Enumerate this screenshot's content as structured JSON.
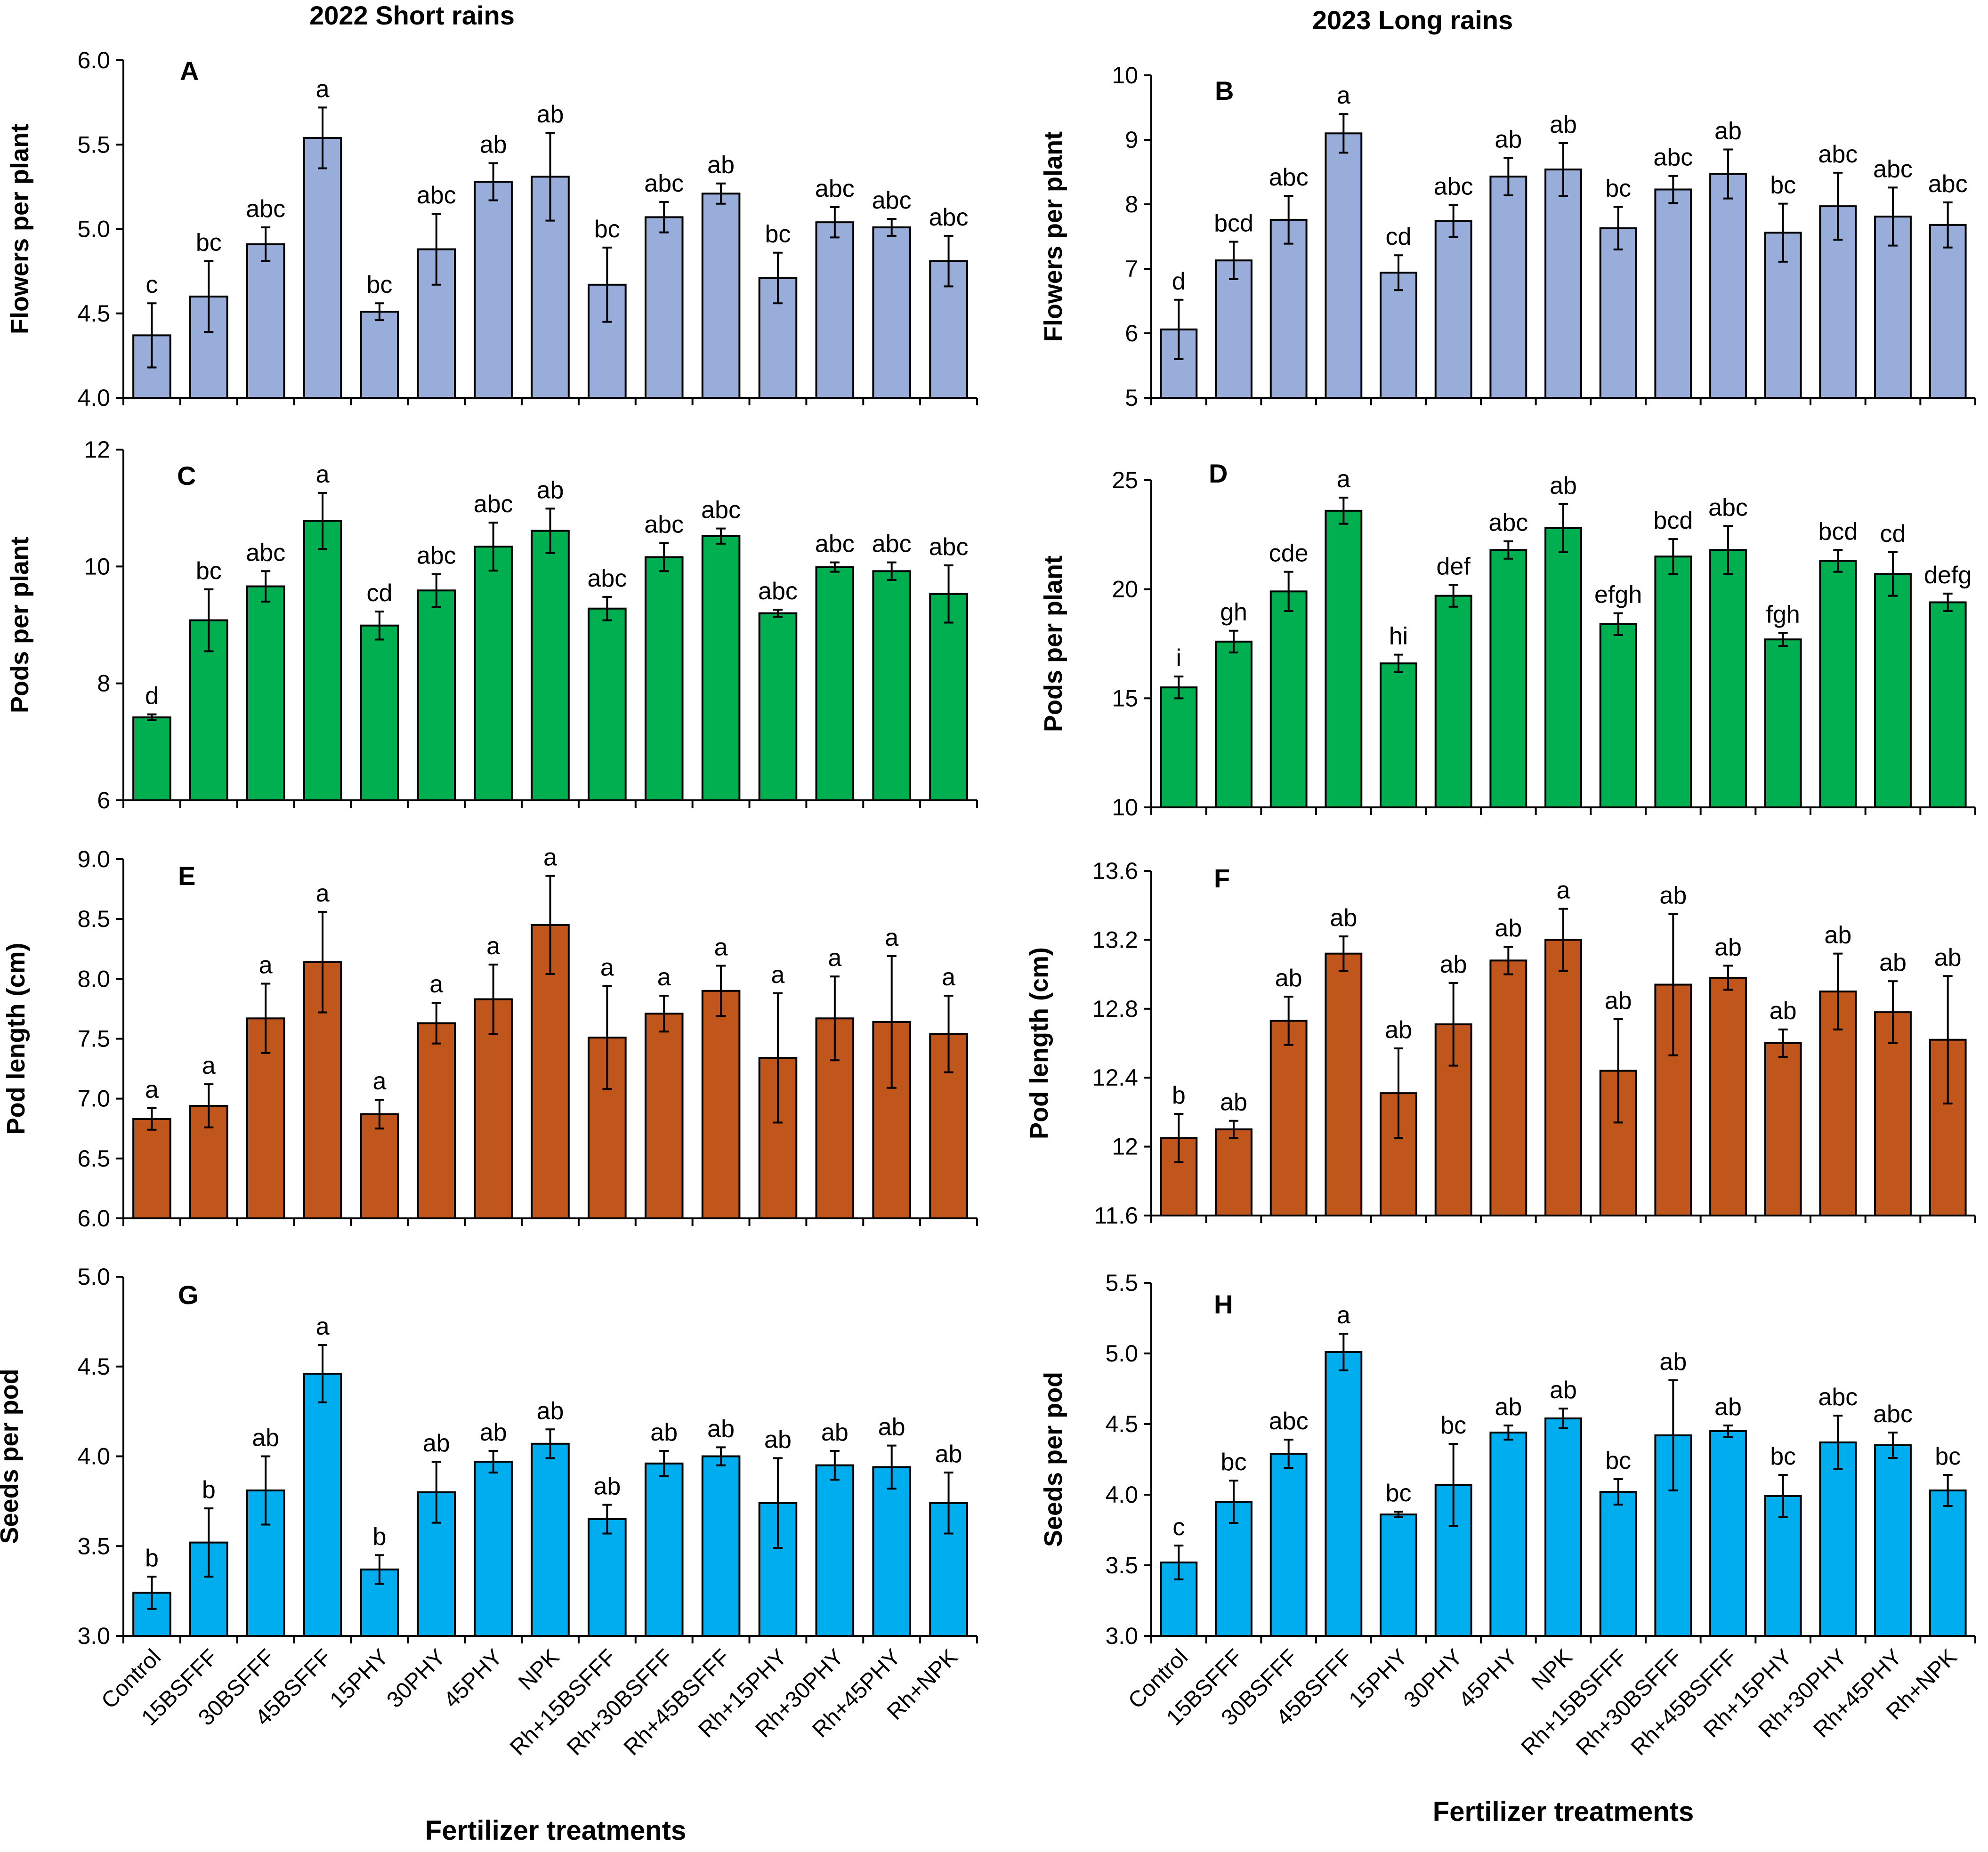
{
  "figure": {
    "season_titles": [
      "2022 Short rains",
      "2023 Long rains"
    ],
    "x_axis_title": "Fertilizer treatments"
  },
  "colors": {
    "flowers": "#98add9",
    "pods": "#00b050",
    "pod_length": "#c0561b",
    "seeds": "#00aeef",
    "axis": "#000000"
  },
  "chart_data": [
    {
      "type": "bar",
      "panel": "A",
      "season": "2022 Short rains",
      "color_key": "flowers",
      "ylabel": "Flowers per plant",
      "ylim": [
        4.0,
        6.0
      ],
      "yticks": [
        4.0,
        4.5,
        5.0,
        5.5,
        6.0
      ],
      "ytick_labels": [
        "4.0",
        "4.5",
        "5.0",
        "5.5",
        "6.0"
      ],
      "categories": [
        "Control",
        "15BSFFF",
        "30BSFFF",
        "45BSFFF",
        "15PHY",
        "30PHY",
        "45PHY",
        "NPK",
        "Rh+15BSFFF",
        "Rh+30BSFFF",
        "Rh+45BSFFF",
        "Rh+15PHY",
        "Rh+30PHY",
        "Rh+45PHY",
        "Rh+NPK"
      ],
      "values": [
        4.37,
        4.6,
        4.91,
        5.54,
        4.51,
        4.88,
        5.28,
        5.31,
        4.67,
        5.07,
        5.21,
        4.71,
        5.04,
        5.01,
        4.81
      ],
      "errors": [
        0.19,
        0.21,
        0.1,
        0.18,
        0.05,
        0.21,
        0.11,
        0.26,
        0.22,
        0.09,
        0.06,
        0.15,
        0.09,
        0.05,
        0.15
      ],
      "letters": [
        "c",
        "bc",
        "abc",
        "a",
        "bc",
        "abc",
        "ab",
        "ab",
        "bc",
        "abc",
        "ab",
        "bc",
        "abc",
        "abc",
        "abc"
      ],
      "show_xlabels": false
    },
    {
      "type": "bar",
      "panel": "B",
      "season": "2023 Long rains",
      "color_key": "flowers",
      "ylabel": "Flowers per plant",
      "ylim": [
        5,
        10
      ],
      "yticks": [
        5,
        6,
        7,
        8,
        9,
        10
      ],
      "ytick_labels": [
        "5",
        "6",
        "7",
        "8",
        "9",
        "10"
      ],
      "categories": [
        "Control",
        "15BSFFF",
        "30BSFFF",
        "45BSFFF",
        "15PHY",
        "30PHY",
        "45PHY",
        "NPK",
        "Rh+15BSFFF",
        "Rh+30BSFFF",
        "Rh+45BSFFF",
        "Rh+15PHY",
        "Rh+30PHY",
        "Rh+45PHY",
        "Rh+NPK"
      ],
      "values": [
        6.06,
        7.13,
        7.76,
        9.1,
        6.94,
        7.74,
        8.43,
        8.54,
        7.63,
        8.23,
        8.47,
        7.56,
        7.97,
        7.81,
        7.68
      ],
      "errors": [
        0.46,
        0.29,
        0.37,
        0.3,
        0.27,
        0.25,
        0.29,
        0.41,
        0.33,
        0.21,
        0.38,
        0.45,
        0.52,
        0.45,
        0.35
      ],
      "letters": [
        "d",
        "bcd",
        "abc",
        "a",
        "cd",
        "abc",
        "ab",
        "ab",
        "bc",
        "abc",
        "ab",
        "bc",
        "abc",
        "abc",
        "abc"
      ],
      "show_xlabels": false
    },
    {
      "type": "bar",
      "panel": "C",
      "season": "2022 Short rains",
      "color_key": "pods",
      "ylabel": "Pods per plant",
      "ylim": [
        6,
        12
      ],
      "yticks": [
        6,
        8,
        10,
        12
      ],
      "ytick_labels": [
        "6",
        "8",
        "10",
        "12"
      ],
      "categories": [
        "Control",
        "15BSFFF",
        "30BSFFF",
        "45BSFFF",
        "15PHY",
        "30PHY",
        "45PHY",
        "NPK",
        "Rh+15BSFFF",
        "Rh+30BSFFF",
        "Rh+45BSFFF",
        "Rh+15PHY",
        "Rh+30PHY",
        "Rh+45PHY",
        "Rh+NPK"
      ],
      "values": [
        7.42,
        9.08,
        9.66,
        10.78,
        8.99,
        9.59,
        10.34,
        10.61,
        9.28,
        10.16,
        10.52,
        9.2,
        9.99,
        9.92,
        9.53
      ],
      "errors": [
        0.05,
        0.53,
        0.26,
        0.48,
        0.24,
        0.28,
        0.41,
        0.38,
        0.2,
        0.24,
        0.13,
        0.06,
        0.08,
        0.15,
        0.49
      ],
      "letters": [
        "d",
        "bc",
        "abc",
        "a",
        "cd",
        "abc",
        "abc",
        "ab",
        "abc",
        "abc",
        "abc",
        "abc",
        "abc",
        "abc",
        "abc"
      ],
      "show_xlabels": false
    },
    {
      "type": "bar",
      "panel": "D",
      "season": "2023 Long rains",
      "color_key": "pods",
      "ylabel": "Pods per plant",
      "ylim": [
        10,
        25
      ],
      "yticks": [
        10,
        15,
        20,
        25
      ],
      "ytick_labels": [
        "10",
        "15",
        "20",
        "25"
      ],
      "categories": [
        "Control",
        "15BSFFF",
        "30BSFFF",
        "45BSFFF",
        "15PHY",
        "30PHY",
        "45PHY",
        "NPK",
        "Rh+15BSFFF",
        "Rh+30BSFFF",
        "Rh+45BSFFF",
        "Rh+15PHY",
        "Rh+30PHY",
        "Rh+45PHY",
        "Rh+NPK"
      ],
      "values": [
        15.5,
        17.6,
        19.9,
        23.6,
        16.6,
        19.7,
        21.8,
        22.8,
        18.4,
        21.5,
        21.8,
        17.7,
        21.3,
        20.7,
        19.4
      ],
      "errors": [
        0.5,
        0.5,
        0.9,
        0.6,
        0.4,
        0.5,
        0.4,
        1.1,
        0.5,
        0.8,
        1.1,
        0.3,
        0.5,
        1.0,
        0.4
      ],
      "letters": [
        "i",
        "gh",
        "cde",
        "a",
        "hi",
        "def",
        "abc",
        "ab",
        "efgh",
        "bcd",
        "abc",
        "fgh",
        "bcd",
        "cd",
        "defg"
      ],
      "show_xlabels": false
    },
    {
      "type": "bar",
      "panel": "E",
      "season": "2022 Short rains",
      "color_key": "pod_length",
      "ylabel": "Pod length (cm)",
      "ylim": [
        6.0,
        9.0
      ],
      "yticks": [
        6.0,
        6.5,
        7.0,
        7.5,
        8.0,
        8.5,
        9.0
      ],
      "ytick_labels": [
        "6.0",
        "6.5",
        "7.0",
        "7.5",
        "8.0",
        "8.5",
        "9.0"
      ],
      "categories": [
        "Control",
        "15BSFFF",
        "30BSFFF",
        "45BSFFF",
        "15PHY",
        "30PHY",
        "45PHY",
        "NPK",
        "Rh+15BSFFF",
        "Rh+30BSFFF",
        "Rh+45BSFFF",
        "Rh+15PHY",
        "Rh+30PHY",
        "Rh+45PHY",
        "Rh+NPK"
      ],
      "values": [
        6.83,
        6.94,
        7.67,
        8.14,
        6.87,
        7.63,
        7.83,
        8.45,
        7.51,
        7.71,
        7.9,
        7.34,
        7.67,
        7.64,
        7.54
      ],
      "errors": [
        0.09,
        0.18,
        0.29,
        0.42,
        0.12,
        0.17,
        0.29,
        0.41,
        0.43,
        0.15,
        0.21,
        0.54,
        0.35,
        0.55,
        0.32
      ],
      "letters": [
        "a",
        "a",
        "a",
        "a",
        "a",
        "a",
        "a",
        "a",
        "a",
        "a",
        "a",
        "a",
        "a",
        "a",
        "a"
      ],
      "show_xlabels": false
    },
    {
      "type": "bar",
      "panel": "F",
      "season": "2023 Long rains",
      "color_key": "pod_length",
      "ylabel": "Pod length (cm)",
      "ylim": [
        11.6,
        13.6
      ],
      "yticks": [
        11.6,
        12.0,
        12.4,
        12.8,
        13.2,
        13.6
      ],
      "ytick_labels": [
        "11.6",
        "12",
        "12.4",
        "12.8",
        "13.2",
        "13.6"
      ],
      "categories": [
        "Control",
        "15BSFFF",
        "30BSFFF",
        "45BSFFF",
        "15PHY",
        "30PHY",
        "45PHY",
        "NPK",
        "Rh+15BSFFF",
        "Rh+30BSFFF",
        "Rh+45BSFFF",
        "Rh+15PHY",
        "Rh+30PHY",
        "Rh+45PHY",
        "Rh+NPK"
      ],
      "values": [
        12.05,
        12.1,
        12.73,
        13.12,
        12.31,
        12.71,
        13.08,
        13.2,
        12.44,
        12.94,
        12.98,
        12.6,
        12.9,
        12.78,
        12.62
      ],
      "errors": [
        0.14,
        0.05,
        0.14,
        0.1,
        0.26,
        0.24,
        0.08,
        0.18,
        0.3,
        0.41,
        0.07,
        0.08,
        0.22,
        0.18,
        0.37
      ],
      "letters": [
        "b",
        "ab",
        "ab",
        "ab",
        "ab",
        "ab",
        "ab",
        "a",
        "ab",
        "ab",
        "ab",
        "ab",
        "ab",
        "ab",
        "ab"
      ],
      "show_xlabels": false
    },
    {
      "type": "bar",
      "panel": "G",
      "season": "2022 Short rains",
      "color_key": "seeds",
      "ylabel": "Seeds per  pod",
      "ylim": [
        3.0,
        5.0
      ],
      "yticks": [
        3.0,
        3.5,
        4.0,
        4.5,
        5.0
      ],
      "ytick_labels": [
        "3.0",
        "3.5",
        "4.0",
        "4.5",
        "5.0"
      ],
      "categories": [
        "Control",
        "15BSFFF",
        "30BSFFF",
        "45BSFFF",
        "15PHY",
        "30PHY",
        "45PHY",
        "NPK",
        "Rh+15BSFFF",
        "Rh+30BSFFF",
        "Rh+45BSFFF",
        "Rh+15PHY",
        "Rh+30PHY",
        "Rh+45PHY",
        "Rh+NPK"
      ],
      "values": [
        3.24,
        3.52,
        3.81,
        4.46,
        3.37,
        3.8,
        3.97,
        4.07,
        3.65,
        3.96,
        4.0,
        3.74,
        3.95,
        3.94,
        3.74
      ],
      "errors": [
        0.09,
        0.19,
        0.19,
        0.16,
        0.08,
        0.17,
        0.06,
        0.08,
        0.08,
        0.07,
        0.05,
        0.25,
        0.08,
        0.12,
        0.17
      ],
      "letters": [
        "b",
        "b",
        "ab",
        "a",
        "b",
        "ab",
        "ab",
        "ab",
        "ab",
        "ab",
        "ab",
        "ab",
        "ab",
        "ab",
        "ab"
      ],
      "show_xlabels": true
    },
    {
      "type": "bar",
      "panel": "H",
      "season": "2023 Long rains",
      "color_key": "seeds",
      "ylabel": "Seeds per pod",
      "ylim": [
        3.0,
        5.5
      ],
      "yticks": [
        3.0,
        3.5,
        4.0,
        4.5,
        5.0,
        5.5
      ],
      "ytick_labels": [
        "3.0",
        "3.5",
        "4.0",
        "4.5",
        "5.0",
        "5.5"
      ],
      "categories": [
        "Control",
        "15BSFFF",
        "30BSFFF",
        "45BSFFF",
        "15PHY",
        "30PHY",
        "45PHY",
        "NPK",
        "Rh+15BSFFF",
        "Rh+30BSFFF",
        "Rh+45BSFFF",
        "Rh+15PHY",
        "Rh+30PHY",
        "Rh+45PHY",
        "Rh+NPK"
      ],
      "values": [
        3.52,
        3.95,
        4.29,
        5.01,
        3.86,
        4.07,
        4.44,
        4.54,
        4.02,
        4.42,
        4.45,
        3.99,
        4.37,
        4.35,
        4.03
      ],
      "errors": [
        0.12,
        0.15,
        0.1,
        0.13,
        0.02,
        0.29,
        0.05,
        0.07,
        0.09,
        0.39,
        0.04,
        0.15,
        0.19,
        0.09,
        0.11
      ],
      "letters": [
        "c",
        "bc",
        "abc",
        "a",
        "bc",
        "bc",
        "ab",
        "ab",
        "bc",
        "ab",
        "ab",
        "bc",
        "abc",
        "abc",
        "bc"
      ],
      "show_xlabels": true
    }
  ]
}
